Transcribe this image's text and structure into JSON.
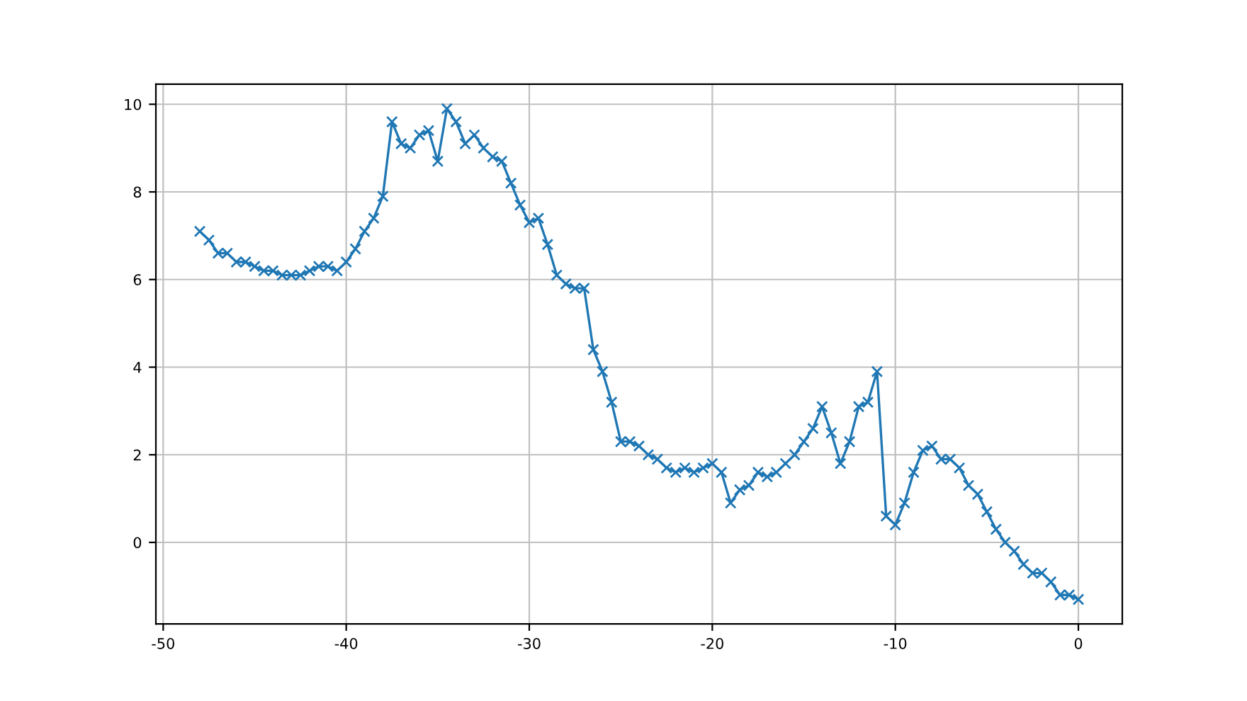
{
  "chart_data": {
    "type": "line",
    "marker": "cross",
    "line_style": "solid",
    "grid": true,
    "x": [
      -48,
      -47.5,
      -47,
      -46.5,
      -46,
      -45.5,
      -45,
      -44.5,
      -44,
      -43.5,
      -43,
      -42.5,
      -42,
      -41.5,
      -41,
      -40.5,
      -40,
      -39.5,
      -39,
      -38.5,
      -38,
      -37.5,
      -37,
      -36.5,
      -36,
      -35.5,
      -35,
      -34.5,
      -34,
      -33.5,
      -33,
      -32.5,
      -32,
      -31.5,
      -31,
      -30.5,
      -30,
      -29.5,
      -29,
      -28.5,
      -28,
      -27.5,
      -27,
      -26.5,
      -26,
      -25.5,
      -25,
      -24.5,
      -24,
      -23.5,
      -23,
      -22.5,
      -22,
      -21.5,
      -21,
      -20.5,
      -20,
      -19.5,
      -19,
      -18.5,
      -18,
      -17.5,
      -17,
      -16.5,
      -16,
      -15.5,
      -15,
      -14.5,
      -14,
      -13.5,
      -13,
      -12.5,
      -12,
      -11.5,
      -11,
      -10.5,
      -10,
      -9.5,
      -9,
      -8.5,
      -8,
      -7.5,
      -7,
      -6.5,
      -6,
      -5.5,
      -5,
      -4.5,
      -4,
      -3.5,
      -3,
      -2.5,
      -2,
      -1.5,
      -1,
      -0.5,
      0
    ],
    "series": [
      {
        "color": "#1f77b4",
        "values": [
          7.1,
          6.9,
          6.6,
          6.6,
          6.4,
          6.4,
          6.3,
          6.2,
          6.2,
          6.1,
          6.1,
          6.1,
          6.2,
          6.3,
          6.3,
          6.2,
          6.4,
          6.7,
          7.1,
          7.4,
          7.9,
          9.6,
          9.1,
          9.0,
          9.3,
          9.4,
          8.7,
          9.9,
          9.6,
          9.1,
          9.3,
          9.0,
          8.8,
          8.7,
          8.2,
          7.7,
          7.3,
          7.4,
          6.8,
          6.1,
          5.9,
          5.8,
          5.8,
          4.4,
          3.9,
          3.2,
          2.3,
          2.3,
          2.2,
          2.0,
          1.9,
          1.7,
          1.6,
          1.7,
          1.6,
          1.7,
          1.8,
          1.6,
          0.9,
          1.2,
          1.3,
          1.6,
          1.5,
          1.6,
          1.8,
          2.0,
          2.3,
          2.6,
          3.1,
          2.5,
          1.8,
          2.3,
          3.1,
          3.2,
          3.9,
          0.6,
          0.4,
          0.9,
          1.6,
          2.1,
          2.2,
          1.9,
          1.9,
          1.7,
          1.3,
          1.1,
          0.7,
          0.3,
          0.0,
          -0.2,
          -0.5,
          -0.7,
          -0.7,
          -0.9,
          -1.2,
          -1.2,
          -1.3
        ]
      }
    ],
    "xlim": [
      -50.4,
      2.4
    ],
    "ylim": [
      -1.86,
      10.46
    ],
    "xticks": [
      -50,
      -40,
      -30,
      -20,
      -10,
      0
    ],
    "yticks": [
      0,
      2,
      4,
      6,
      8,
      10
    ]
  }
}
